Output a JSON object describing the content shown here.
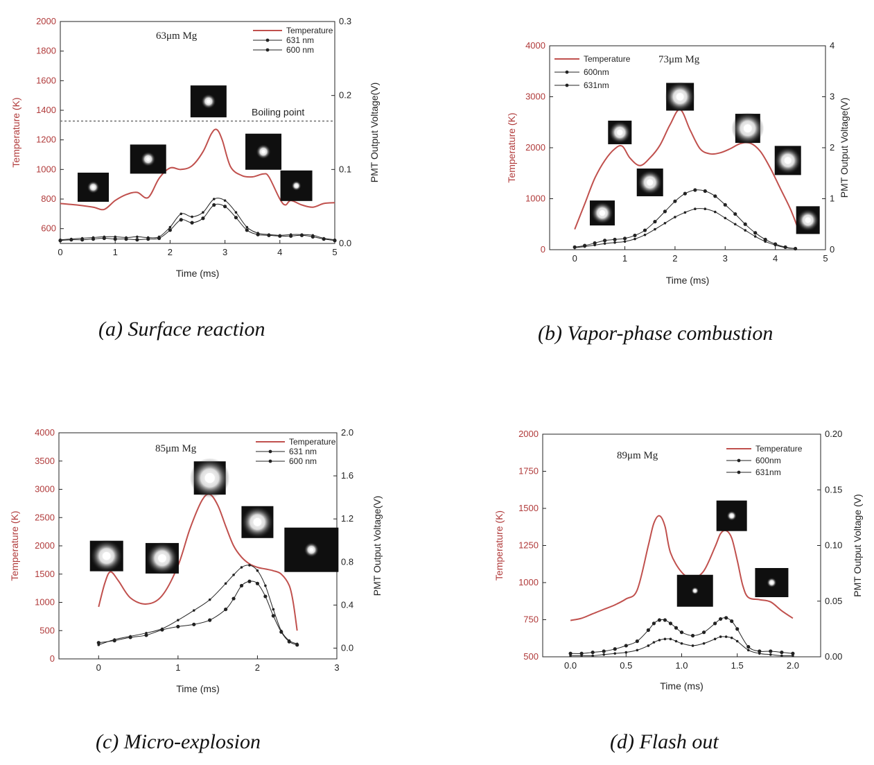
{
  "chart_data": [
    {
      "id": "a",
      "type": "line",
      "caption": "(a) Surface reaction",
      "annotation": "63μm Mg",
      "xlabel": "Time (ms)",
      "ylabel_left": "Temperature (K)",
      "ylabel_right": "PMT Output Voltage(V)",
      "xlim": [
        0,
        5
      ],
      "xticks": [
        "0",
        "1",
        "2",
        "3",
        "4",
        "5"
      ],
      "ylim_left": [
        500,
        2000
      ],
      "yticks_left": [
        "600",
        "800",
        "1000",
        "1200",
        "1400",
        "1600",
        "1800",
        "2000"
      ],
      "ylim_right": [
        0,
        0.3
      ],
      "yticks_right": [
        "0.0",
        "0.1",
        "0.2",
        "0.3"
      ],
      "reference_line": {
        "label": "Boiling point",
        "value": 1327
      },
      "legend_position": "top-right",
      "legend": [
        "Temperature",
        "631 nm",
        "600 nm"
      ],
      "colors": {
        "temperature": "#c0504d",
        "signal": "#222222"
      },
      "series": [
        {
          "name": "Temperature",
          "axis": "left",
          "x": [
            0,
            0.3,
            0.6,
            0.8,
            1.0,
            1.2,
            1.4,
            1.6,
            1.8,
            2.0,
            2.2,
            2.4,
            2.6,
            2.75,
            2.85,
            2.95,
            3.1,
            3.3,
            3.5,
            3.7,
            3.8,
            4.0,
            4.1,
            4.2,
            4.4,
            4.6,
            4.8,
            5.0
          ],
          "y": [
            770,
            760,
            745,
            730,
            790,
            830,
            845,
            810,
            940,
            1010,
            1000,
            1025,
            1120,
            1240,
            1270,
            1200,
            1020,
            960,
            950,
            970,
            950,
            800,
            760,
            790,
            760,
            745,
            770,
            775
          ]
        },
        {
          "name": "631 nm",
          "axis": "right",
          "x": [
            0,
            0.2,
            0.4,
            0.6,
            0.8,
            1.0,
            1.2,
            1.4,
            1.6,
            1.8,
            2.0,
            2.2,
            2.4,
            2.6,
            2.8,
            3.0,
            3.2,
            3.4,
            3.6,
            3.8,
            4.0,
            4.2,
            4.4,
            4.6,
            4.8,
            5.0
          ],
          "y": [
            0.004,
            0.005,
            0.005,
            0.006,
            0.007,
            0.006,
            0.006,
            0.005,
            0.006,
            0.007,
            0.018,
            0.032,
            0.028,
            0.034,
            0.052,
            0.05,
            0.035,
            0.018,
            0.012,
            0.011,
            0.01,
            0.01,
            0.011,
            0.009,
            0.006,
            0.004
          ]
        },
        {
          "name": "600 nm",
          "axis": "right",
          "x": [
            0,
            0.2,
            0.4,
            0.6,
            0.8,
            1.0,
            1.2,
            1.4,
            1.6,
            1.8,
            2.0,
            2.2,
            2.4,
            2.6,
            2.8,
            3.0,
            3.2,
            3.4,
            3.6,
            3.8,
            4.0,
            4.2,
            4.4,
            4.6,
            4.8,
            5.0
          ],
          "y": [
            0.005,
            0.006,
            0.007,
            0.008,
            0.009,
            0.009,
            0.008,
            0.009,
            0.008,
            0.009,
            0.022,
            0.04,
            0.036,
            0.042,
            0.06,
            0.058,
            0.042,
            0.022,
            0.014,
            0.012,
            0.011,
            0.012,
            0.012,
            0.011,
            0.007,
            0.005
          ]
        }
      ],
      "insets": [
        {
          "x": 0.6,
          "y": 880,
          "w": 45,
          "h": 42,
          "spot": 5
        },
        {
          "x": 1.6,
          "y": 1070,
          "w": 52,
          "h": 42,
          "spot": 6
        },
        {
          "x": 2.7,
          "y": 1460,
          "w": 52,
          "h": 46,
          "spot": 6
        },
        {
          "x": 3.7,
          "y": 1120,
          "w": 52,
          "h": 52,
          "spot": 6
        },
        {
          "x": 4.3,
          "y": 890,
          "w": 46,
          "h": 44,
          "spot": 4
        }
      ]
    },
    {
      "id": "b",
      "type": "line",
      "caption": "(b) Vapor-phase combustion",
      "annotation": "73μm   Mg",
      "xlabel": "Time (ms)",
      "ylabel_left": "Temperature (K)",
      "ylabel_right": "PMT Output Voltage(V)",
      "xlim": [
        -0.5,
        5
      ],
      "xticks": [
        "0",
        "1",
        "2",
        "3",
        "4",
        "5"
      ],
      "ylim_left": [
        0,
        4000
      ],
      "yticks_left": [
        "0",
        "1000",
        "2000",
        "3000",
        "4000"
      ],
      "ylim_right": [
        0,
        4
      ],
      "yticks_right": [
        "0",
        "1",
        "2",
        "3",
        "4"
      ],
      "legend_position": "top-left",
      "legend": [
        "Temperature",
        "600nm",
        "631nm"
      ],
      "colors": {
        "temperature": "#c0504d",
        "signal": "#222222"
      },
      "series": [
        {
          "name": "Temperature",
          "axis": "left",
          "x": [
            0,
            0.2,
            0.4,
            0.6,
            0.8,
            0.95,
            1.1,
            1.3,
            1.5,
            1.7,
            1.9,
            2.1,
            2.3,
            2.5,
            2.7,
            2.9,
            3.1,
            3.3,
            3.5,
            3.7,
            3.9,
            4.1,
            4.3,
            4.45
          ],
          "y": [
            400,
            900,
            1400,
            1750,
            1980,
            2030,
            1800,
            1650,
            1800,
            2050,
            2450,
            2750,
            2350,
            1980,
            1880,
            1900,
            1980,
            2080,
            2090,
            1930,
            1600,
            1200,
            800,
            420
          ]
        },
        {
          "name": "600nm",
          "axis": "right",
          "x": [
            0,
            0.2,
            0.4,
            0.6,
            0.8,
            1.0,
            1.2,
            1.4,
            1.6,
            1.8,
            2.0,
            2.2,
            2.4,
            2.6,
            2.8,
            3.0,
            3.2,
            3.4,
            3.6,
            3.8,
            4.0,
            4.2,
            4.4
          ],
          "y": [
            0.05,
            0.08,
            0.13,
            0.18,
            0.2,
            0.22,
            0.28,
            0.38,
            0.55,
            0.75,
            0.95,
            1.1,
            1.17,
            1.15,
            1.05,
            0.88,
            0.7,
            0.5,
            0.33,
            0.2,
            0.11,
            0.05,
            0.02
          ]
        },
        {
          "name": "631nm",
          "axis": "right",
          "x": [
            0,
            0.2,
            0.4,
            0.6,
            0.8,
            1.0,
            1.2,
            1.4,
            1.6,
            1.8,
            2.0,
            2.2,
            2.4,
            2.6,
            2.8,
            3.0,
            3.2,
            3.4,
            3.6,
            3.8,
            4.0,
            4.2,
            4.4
          ],
          "y": [
            0.04,
            0.06,
            0.09,
            0.12,
            0.14,
            0.16,
            0.21,
            0.29,
            0.4,
            0.52,
            0.64,
            0.73,
            0.8,
            0.8,
            0.74,
            0.62,
            0.5,
            0.38,
            0.26,
            0.16,
            0.09,
            0.04,
            0.02
          ]
        }
      ],
      "insets": [
        {
          "x": 0.55,
          "y": 720,
          "w": 36,
          "h": 36,
          "spot": 9
        },
        {
          "x": 0.9,
          "y": 2300,
          "w": 34,
          "h": 34,
          "spot": 9
        },
        {
          "x": 1.5,
          "y": 1320,
          "w": 38,
          "h": 40,
          "spot": 10
        },
        {
          "x": 2.1,
          "y": 3000,
          "w": 40,
          "h": 40,
          "spot": 12
        },
        {
          "x": 3.45,
          "y": 2380,
          "w": 36,
          "h": 42,
          "spot": 13
        },
        {
          "x": 4.25,
          "y": 1750,
          "w": 38,
          "h": 42,
          "spot": 11
        },
        {
          "x": 4.65,
          "y": 580,
          "w": 34,
          "h": 40,
          "spot": 9
        }
      ]
    },
    {
      "id": "c",
      "type": "line",
      "caption": "(c) Micro-explosion",
      "annotation": "85μm Mg",
      "xlabel": "Time (ms)",
      "ylabel_left": "Temperature (K)",
      "ylabel_right": "PMT Output Voltage(V)",
      "xlim": [
        -0.5,
        3
      ],
      "xticks": [
        "0",
        "1",
        "2",
        "3"
      ],
      "ylim_left": [
        0,
        4000
      ],
      "yticks_left": [
        "0",
        "500",
        "1000",
        "1500",
        "2000",
        "2500",
        "3000",
        "3500",
        "4000"
      ],
      "ylim_right": [
        -0.1,
        2.0
      ],
      "yticks_right": [
        "0.0",
        "0.4",
        "0.8",
        "1.2",
        "1.6",
        "2.0"
      ],
      "legend_position": "top-right",
      "legend": [
        "Temperature",
        "631 nm",
        "600 nm"
      ],
      "colors": {
        "temperature": "#c0504d",
        "signal": "#222222"
      },
      "series": [
        {
          "name": "Temperature",
          "axis": "left",
          "x": [
            0,
            0.08,
            0.15,
            0.25,
            0.4,
            0.6,
            0.8,
            1.0,
            1.15,
            1.3,
            1.4,
            1.5,
            1.6,
            1.7,
            1.8,
            1.9,
            2.0,
            2.1,
            2.2,
            2.3,
            2.4,
            2.45,
            2.5
          ],
          "y": [
            920,
            1350,
            1540,
            1380,
            1080,
            970,
            1120,
            1650,
            2300,
            2800,
            2910,
            2720,
            2350,
            2000,
            1800,
            1680,
            1620,
            1590,
            1560,
            1500,
            1300,
            1000,
            500
          ]
        },
        {
          "name": "631 nm",
          "axis": "right",
          "x": [
            0,
            0.2,
            0.4,
            0.6,
            0.8,
            1.0,
            1.2,
            1.4,
            1.6,
            1.7,
            1.8,
            1.9,
            2.0,
            2.1,
            2.2,
            2.3,
            2.4,
            2.5
          ],
          "y": [
            0.05,
            0.07,
            0.1,
            0.12,
            0.17,
            0.2,
            0.22,
            0.26,
            0.36,
            0.46,
            0.58,
            0.62,
            0.6,
            0.48,
            0.3,
            0.15,
            0.06,
            0.03
          ]
        },
        {
          "name": "600 nm",
          "axis": "right",
          "x": [
            0,
            0.2,
            0.4,
            0.6,
            0.8,
            1.0,
            1.2,
            1.4,
            1.6,
            1.7,
            1.8,
            1.9,
            2.0,
            2.1,
            2.2,
            2.3,
            2.4,
            2.5
          ],
          "y": [
            0.03,
            0.08,
            0.11,
            0.14,
            0.18,
            0.26,
            0.35,
            0.45,
            0.6,
            0.68,
            0.75,
            0.77,
            0.72,
            0.58,
            0.36,
            0.16,
            0.07,
            0.04
          ]
        }
      ],
      "insets": [
        {
          "x": 0.1,
          "y": 1820,
          "w": 48,
          "h": 44,
          "spot": 13
        },
        {
          "x": 0.8,
          "y": 1780,
          "w": 48,
          "h": 44,
          "spot": 13
        },
        {
          "x": 1.4,
          "y": 3200,
          "w": 46,
          "h": 48,
          "spot": 16
        },
        {
          "x": 2.0,
          "y": 2420,
          "w": 46,
          "h": 46,
          "spot": 13
        },
        {
          "x": 2.68,
          "y": 1930,
          "w": 78,
          "h": 64,
          "spot": 6
        }
      ]
    },
    {
      "id": "d",
      "type": "line",
      "caption": "(d) Flash out",
      "annotation": "89μm Mg",
      "xlabel": "Time (ms)",
      "ylabel_left": "Temperature (K)",
      "ylabel_right": "PMT Output Voltage (V)",
      "xlim": [
        -0.25,
        2.25
      ],
      "xticks": [
        "0.0",
        "0.5",
        "1.0",
        "1.5",
        "2.0"
      ],
      "ylim_left": [
        500,
        2000
      ],
      "yticks_left": [
        "500",
        "750",
        "1000",
        "1250",
        "1500",
        "1750",
        "2000"
      ],
      "ylim_right": [
        0,
        0.2
      ],
      "yticks_right": [
        "0.00",
        "0.05",
        "0.10",
        "0.15",
        "0.20"
      ],
      "legend_position": "top-right",
      "legend": [
        "Temperature",
        "600nm",
        "631nm"
      ],
      "colors": {
        "temperature": "#c0504d",
        "signal": "#222222"
      },
      "series": [
        {
          "name": "Temperature",
          "axis": "left",
          "x": [
            0,
            0.1,
            0.2,
            0.3,
            0.4,
            0.5,
            0.6,
            0.7,
            0.75,
            0.8,
            0.85,
            0.9,
            1.0,
            1.1,
            1.2,
            1.3,
            1.35,
            1.4,
            1.45,
            1.5,
            1.55,
            1.6,
            1.7,
            1.8,
            1.9,
            2.0
          ],
          "y": [
            745,
            760,
            790,
            820,
            850,
            890,
            950,
            1250,
            1400,
            1450,
            1380,
            1200,
            1070,
            1030,
            1080,
            1240,
            1330,
            1350,
            1300,
            1150,
            980,
            900,
            885,
            870,
            810,
            760
          ]
        },
        {
          "name": "600nm",
          "axis": "right",
          "x": [
            0,
            0.1,
            0.2,
            0.3,
            0.4,
            0.5,
            0.6,
            0.7,
            0.75,
            0.8,
            0.85,
            0.9,
            0.95,
            1.0,
            1.1,
            1.2,
            1.3,
            1.35,
            1.4,
            1.45,
            1.5,
            1.6,
            1.7,
            1.8,
            1.9,
            2.0
          ],
          "y": [
            0.003,
            0.003,
            0.004,
            0.005,
            0.007,
            0.01,
            0.014,
            0.024,
            0.03,
            0.033,
            0.033,
            0.03,
            0.026,
            0.022,
            0.019,
            0.022,
            0.03,
            0.034,
            0.035,
            0.032,
            0.025,
            0.009,
            0.005,
            0.005,
            0.004,
            0.003
          ]
        },
        {
          "name": "631nm",
          "axis": "right",
          "x": [
            0,
            0.1,
            0.2,
            0.3,
            0.4,
            0.5,
            0.6,
            0.7,
            0.75,
            0.8,
            0.85,
            0.9,
            0.95,
            1.0,
            1.1,
            1.2,
            1.3,
            1.35,
            1.4,
            1.45,
            1.5,
            1.6,
            1.7,
            1.8,
            1.9,
            2.0
          ],
          "y": [
            0.001,
            0.001,
            0.001,
            0.002,
            0.003,
            0.004,
            0.006,
            0.01,
            0.013,
            0.015,
            0.016,
            0.016,
            0.014,
            0.012,
            0.01,
            0.012,
            0.016,
            0.018,
            0.018,
            0.017,
            0.014,
            0.006,
            0.003,
            0.002,
            0.001,
            0.001
          ]
        }
      ],
      "insets": [
        {
          "x": 1.12,
          "y": 945,
          "w": 52,
          "h": 46,
          "spot": 3
        },
        {
          "x": 1.45,
          "y": 1450,
          "w": 44,
          "h": 44,
          "spot": 4
        },
        {
          "x": 1.81,
          "y": 1000,
          "w": 48,
          "h": 42,
          "spot": 4
        }
      ]
    }
  ]
}
